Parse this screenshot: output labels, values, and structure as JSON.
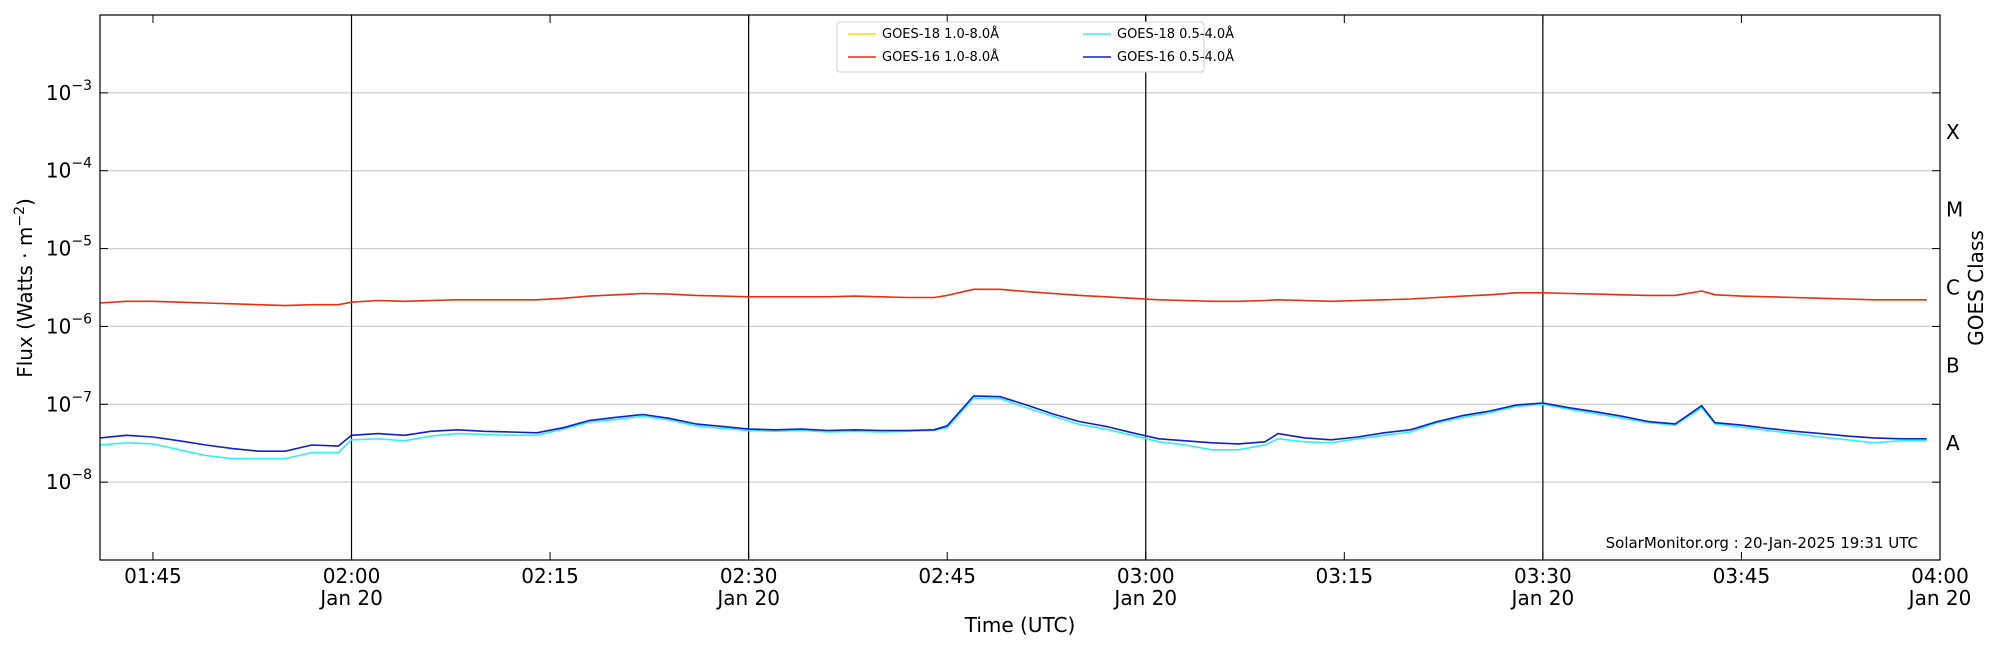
{
  "chart_data": {
    "type": "line",
    "title": "",
    "xlabel": "Time (UTC)",
    "ylabel": "Flux (Watts · m",
    "ylabel_sup": "−2",
    "ylabel_close": ")",
    "y2label": "GOES Class",
    "yscale": "log",
    "ylim": [
      1e-09,
      0.01
    ],
    "x_range": [
      "2025-01-20T01:41",
      "2025-01-20T04:00"
    ],
    "grid": "horizontal",
    "legend_position": "top-center",
    "watermark": "SolarMonitor.org : 20-Jan-2025 19:31 UTC",
    "yticks": [
      {
        "value": 1e-08,
        "base": "10",
        "exp": "−8"
      },
      {
        "value": 1e-07,
        "base": "10",
        "exp": "−7"
      },
      {
        "value": 1e-06,
        "base": "10",
        "exp": "−6"
      },
      {
        "value": 1e-05,
        "base": "10",
        "exp": "−5"
      },
      {
        "value": 0.0001,
        "base": "10",
        "exp": "−4"
      },
      {
        "value": 0.001,
        "base": "10",
        "exp": "−3"
      }
    ],
    "xticks": [
      {
        "value": "01:45",
        "label": "01:45",
        "date": ""
      },
      {
        "value": "02:00",
        "label": "02:00",
        "date": "Jan 20"
      },
      {
        "value": "02:15",
        "label": "02:15",
        "date": ""
      },
      {
        "value": "02:30",
        "label": "02:30",
        "date": "Jan 20"
      },
      {
        "value": "02:45",
        "label": "02:45",
        "date": ""
      },
      {
        "value": "03:00",
        "label": "03:00",
        "date": "Jan 20"
      },
      {
        "value": "03:15",
        "label": "03:15",
        "date": ""
      },
      {
        "value": "03:30",
        "label": "03:30",
        "date": "Jan 20"
      },
      {
        "value": "03:45",
        "label": "03:45",
        "date": ""
      },
      {
        "value": "04:00",
        "label": "04:00",
        "date": "Jan 20"
      }
    ],
    "vertical_markers": [
      "02:00",
      "02:30",
      "03:00",
      "03:30"
    ],
    "goes_classes": [
      {
        "label": "A",
        "value": 3.16e-08
      },
      {
        "label": "B",
        "value": 3.16e-07
      },
      {
        "label": "C",
        "value": 3.16e-06
      },
      {
        "label": "M",
        "value": 3.16e-05
      },
      {
        "label": "X",
        "value": 0.000316
      }
    ],
    "series": [
      {
        "name": "GOES-18 1.0-8.0Å",
        "color": "#ffd700",
        "x": [],
        "y": []
      },
      {
        "name": "GOES-16 1.0-8.0Å",
        "color": "#e8300f",
        "x": [
          "01:41",
          "01:43",
          "01:45",
          "01:47",
          "01:49",
          "01:51",
          "01:53",
          "01:55",
          "01:57",
          "01:59",
          "02:00",
          "02:02",
          "02:04",
          "02:06",
          "02:08",
          "02:10",
          "02:12",
          "02:14",
          "02:16",
          "02:18",
          "02:20",
          "02:22",
          "02:24",
          "02:26",
          "02:28",
          "02:30",
          "02:32",
          "02:34",
          "02:36",
          "02:38",
          "02:40",
          "02:42",
          "02:44",
          "02:45",
          "02:47",
          "02:49",
          "02:51",
          "02:53",
          "02:55",
          "02:57",
          "02:59",
          "03:01",
          "03:03",
          "03:05",
          "03:07",
          "03:09",
          "03:10",
          "03:12",
          "03:14",
          "03:16",
          "03:18",
          "03:20",
          "03:22",
          "03:24",
          "03:26",
          "03:28",
          "03:30",
          "03:32",
          "03:34",
          "03:36",
          "03:38",
          "03:40",
          "03:42",
          "03:43",
          "03:45",
          "03:47",
          "03:49",
          "03:51",
          "03:53",
          "03:55",
          "03:57",
          "03:59"
        ],
        "y": [
          2e-06,
          2.1e-06,
          2.1e-06,
          2.05e-06,
          2e-06,
          1.95e-06,
          1.9e-06,
          1.85e-06,
          1.9e-06,
          1.9e-06,
          2.05e-06,
          2.15e-06,
          2.1e-06,
          2.15e-06,
          2.2e-06,
          2.2e-06,
          2.2e-06,
          2.2e-06,
          2.3e-06,
          2.45e-06,
          2.55e-06,
          2.65e-06,
          2.6e-06,
          2.5e-06,
          2.45e-06,
          2.4e-06,
          2.4e-06,
          2.4e-06,
          2.4e-06,
          2.45e-06,
          2.4e-06,
          2.35e-06,
          2.35e-06,
          2.5e-06,
          3e-06,
          3e-06,
          2.8e-06,
          2.65e-06,
          2.5e-06,
          2.4e-06,
          2.3e-06,
          2.2e-06,
          2.15e-06,
          2.1e-06,
          2.1e-06,
          2.15e-06,
          2.2e-06,
          2.15e-06,
          2.1e-06,
          2.15e-06,
          2.2e-06,
          2.25e-06,
          2.35e-06,
          2.45e-06,
          2.55e-06,
          2.7e-06,
          2.7e-06,
          2.65e-06,
          2.6e-06,
          2.55e-06,
          2.5e-06,
          2.5e-06,
          2.85e-06,
          2.55e-06,
          2.45e-06,
          2.4e-06,
          2.35e-06,
          2.3e-06,
          2.25e-06,
          2.2e-06,
          2.2e-06,
          2.2e-06
        ]
      },
      {
        "name": "GOES-18 0.5-4.0Å",
        "color": "#33f0f0",
        "x": [
          "01:41",
          "01:43",
          "01:45",
          "01:47",
          "01:49",
          "01:51",
          "01:53",
          "01:55",
          "01:57",
          "01:59",
          "02:00",
          "02:02",
          "02:04",
          "02:06",
          "02:08",
          "02:10",
          "02:12",
          "02:14",
          "02:16",
          "02:18",
          "02:20",
          "02:22",
          "02:24",
          "02:26",
          "02:28",
          "02:30",
          "02:32",
          "02:34",
          "02:36",
          "02:38",
          "02:40",
          "02:42",
          "02:44",
          "02:45",
          "02:47",
          "02:49",
          "02:51",
          "02:53",
          "02:55",
          "02:57",
          "02:59",
          "03:01",
          "03:03",
          "03:05",
          "03:07",
          "03:09",
          "03:10",
          "03:12",
          "03:14",
          "03:16",
          "03:18",
          "03:20",
          "03:22",
          "03:24",
          "03:26",
          "03:28",
          "03:30",
          "03:32",
          "03:34",
          "03:36",
          "03:38",
          "03:40",
          "03:42",
          "03:43",
          "03:45",
          "03:47",
          "03:49",
          "03:51",
          "03:53",
          "03:55",
          "03:57",
          "03:59"
        ],
        "y": [
          3e-08,
          3.2e-08,
          3.1e-08,
          2.6e-08,
          2.2e-08,
          2e-08,
          2e-08,
          2e-08,
          2.4e-08,
          2.4e-08,
          3.5e-08,
          3.6e-08,
          3.4e-08,
          3.9e-08,
          4.2e-08,
          4.1e-08,
          4e-08,
          4e-08,
          4.8e-08,
          5.9e-08,
          6.4e-08,
          7e-08,
          6.3e-08,
          5.3e-08,
          4.9e-08,
          4.6e-08,
          4.5e-08,
          4.6e-08,
          4.4e-08,
          4.5e-08,
          4.4e-08,
          4.5e-08,
          4.6e-08,
          5e-08,
          1.2e-07,
          1.18e-07,
          9e-08,
          7e-08,
          5.5e-08,
          4.8e-08,
          4e-08,
          3.3e-08,
          3e-08,
          2.6e-08,
          2.6e-08,
          3e-08,
          3.6e-08,
          3.3e-08,
          3.2e-08,
          3.6e-08,
          4e-08,
          4.4e-08,
          5.8e-08,
          6.8e-08,
          7.8e-08,
          9.4e-08,
          1e-07,
          8.6e-08,
          7.6e-08,
          6.6e-08,
          5.8e-08,
          5.4e-08,
          9e-08,
          5.6e-08,
          5.1e-08,
          4.6e-08,
          4.2e-08,
          3.8e-08,
          3.5e-08,
          3.2e-08,
          3.4e-08,
          3.4e-08
        ]
      },
      {
        "name": "GOES-16 0.5-4.0Å",
        "color": "#1020d0",
        "x": [
          "01:41",
          "01:43",
          "01:45",
          "01:47",
          "01:49",
          "01:51",
          "01:53",
          "01:55",
          "01:57",
          "01:59",
          "02:00",
          "02:02",
          "02:04",
          "02:06",
          "02:08",
          "02:10",
          "02:12",
          "02:14",
          "02:16",
          "02:18",
          "02:20",
          "02:22",
          "02:24",
          "02:26",
          "02:28",
          "02:30",
          "02:32",
          "02:34",
          "02:36",
          "02:38",
          "02:40",
          "02:42",
          "02:44",
          "02:45",
          "02:47",
          "02:49",
          "02:51",
          "02:53",
          "02:55",
          "02:57",
          "02:59",
          "03:01",
          "03:03",
          "03:05",
          "03:07",
          "03:09",
          "03:10",
          "03:12",
          "03:14",
          "03:16",
          "03:18",
          "03:20",
          "03:22",
          "03:24",
          "03:26",
          "03:28",
          "03:30",
          "03:32",
          "03:34",
          "03:36",
          "03:38",
          "03:40",
          "03:42",
          "03:43",
          "03:45",
          "03:47",
          "03:49",
          "03:51",
          "03:53",
          "03:55",
          "03:57",
          "03:59"
        ],
        "y": [
          3.7e-08,
          4e-08,
          3.8e-08,
          3.4e-08,
          3e-08,
          2.7e-08,
          2.5e-08,
          2.5e-08,
          3e-08,
          2.9e-08,
          4e-08,
          4.2e-08,
          4e-08,
          4.5e-08,
          4.7e-08,
          4.5e-08,
          4.4e-08,
          4.3e-08,
          5e-08,
          6.2e-08,
          6.8e-08,
          7.4e-08,
          6.6e-08,
          5.6e-08,
          5.2e-08,
          4.8e-08,
          4.7e-08,
          4.8e-08,
          4.6e-08,
          4.7e-08,
          4.6e-08,
          4.6e-08,
          4.7e-08,
          5.3e-08,
          1.28e-07,
          1.25e-07,
          9.8e-08,
          7.5e-08,
          6e-08,
          5.2e-08,
          4.3e-08,
          3.6e-08,
          3.4e-08,
          3.2e-08,
          3.1e-08,
          3.3e-08,
          4.2e-08,
          3.7e-08,
          3.5e-08,
          3.8e-08,
          4.3e-08,
          4.7e-08,
          6e-08,
          7.2e-08,
          8.2e-08,
          9.8e-08,
          1.04e-07,
          9e-08,
          8e-08,
          7e-08,
          6e-08,
          5.6e-08,
          9.6e-08,
          5.8e-08,
          5.4e-08,
          4.9e-08,
          4.5e-08,
          4.2e-08,
          3.9e-08,
          3.7e-08,
          3.6e-08,
          3.6e-08
        ]
      }
    ]
  }
}
